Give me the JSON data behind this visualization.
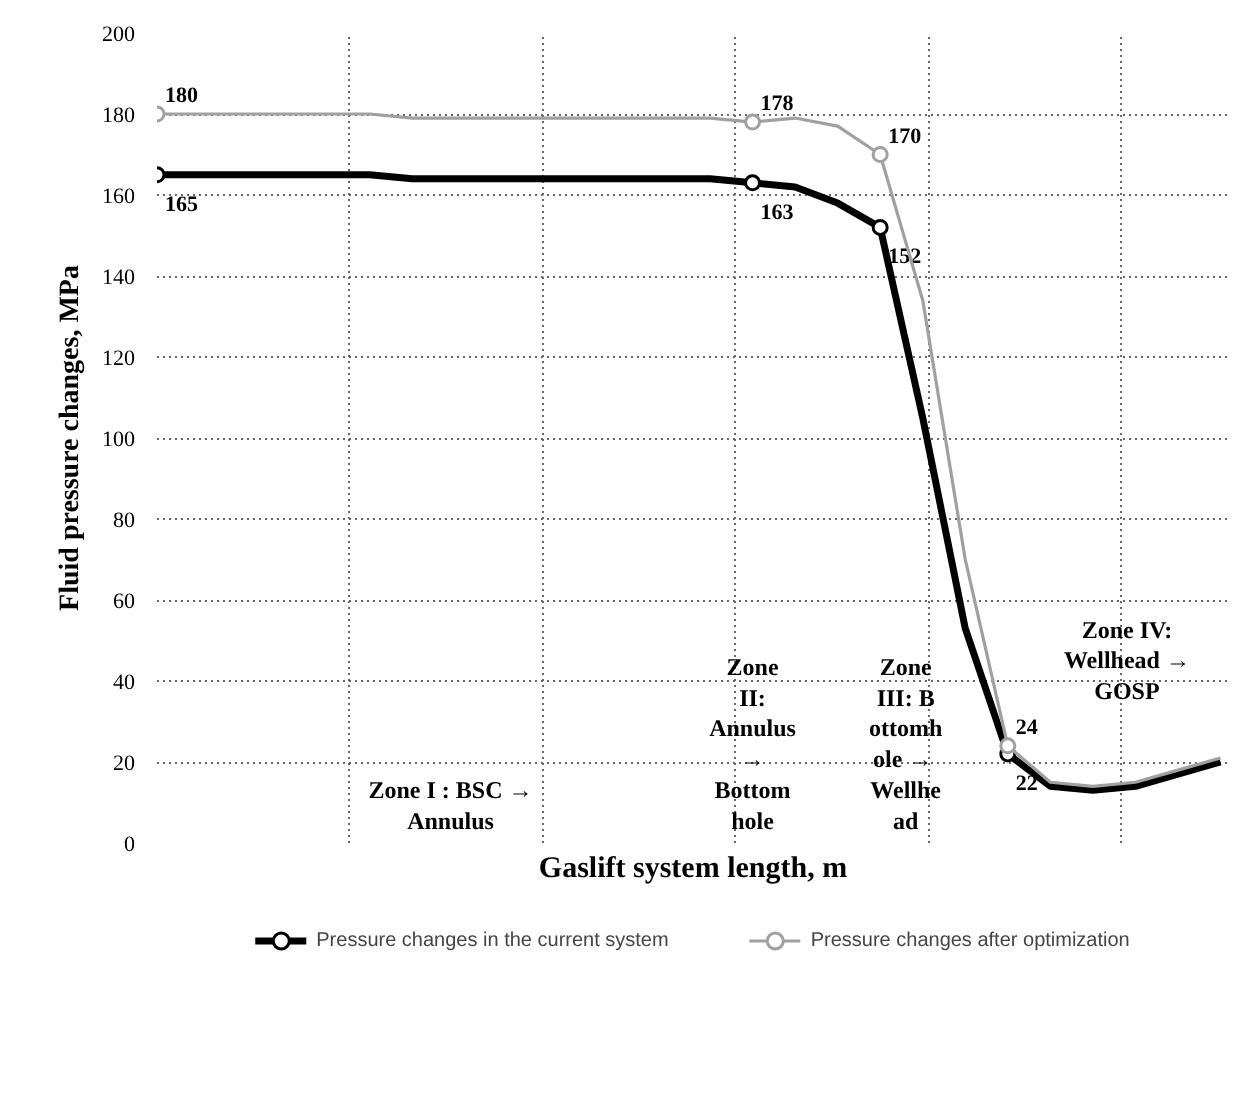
{
  "chart_data": {
    "type": "line",
    "xlabel": "Gaslift system length, m",
    "ylabel": "Fluid pressure changes, MPa",
    "categories": [
      null,
      null,
      null,
      null,
      null,
      null,
      null,
      null,
      null,
      null,
      null,
      null,
      null,
      null,
      null,
      null,
      null,
      null,
      null,
      null,
      null,
      null,
      null,
      null,
      null,
      null
    ],
    "series": [
      {
        "name": "Pressure changes in the current system",
        "color": "#000000",
        "values": [
          165,
          165,
          165,
          165,
          165,
          165,
          164,
          164,
          164,
          164,
          164,
          164,
          164,
          164,
          163,
          162,
          158,
          152,
          105,
          53,
          22,
          14,
          13,
          14,
          17,
          20
        ],
        "value_labels": [
          "165",
          null,
          null,
          null,
          null,
          null,
          null,
          null,
          null,
          null,
          null,
          null,
          null,
          null,
          "163",
          null,
          null,
          "152",
          null,
          null,
          "22",
          null,
          null,
          null,
          null,
          null
        ]
      },
      {
        "name": "Pressure changes after optimization",
        "color": "#a0a0a0",
        "values": [
          180,
          180,
          180,
          180,
          180,
          180,
          179,
          179,
          179,
          179,
          179,
          179,
          179,
          179,
          178,
          179,
          177,
          170,
          134,
          70,
          24,
          15,
          14,
          15,
          18,
          21
        ],
        "value_labels": [
          "180",
          null,
          null,
          null,
          null,
          null,
          null,
          null,
          null,
          null,
          null,
          null,
          null,
          null,
          "178",
          null,
          null,
          "170",
          null,
          null,
          "24",
          null,
          null,
          null,
          null,
          null
        ]
      }
    ],
    "ylim": [
      0,
      200
    ],
    "yticks": [
      0,
      20,
      40,
      60,
      80,
      100,
      120,
      140,
      160,
      180,
      200
    ],
    "grid": true,
    "legend": "bottom",
    "line_style": "solid",
    "tick_labels": "y",
    "annotations": [
      "Zone I : BSC → Annulus",
      "Zone II: Annulus → Bottom hole",
      "Zone III: Bottomhole → Wellhead",
      "Zone IV: Wellhead → GOSP"
    ]
  }
}
